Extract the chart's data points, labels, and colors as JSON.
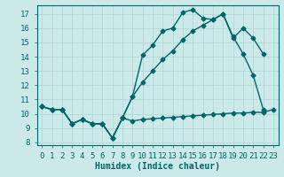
{
  "xlabel": "Humidex (Indice chaleur)",
  "background_color": "#cce9e9",
  "grid_color": "#add4d4",
  "line_color": "#006666",
  "xlim": [
    -0.5,
    23.5
  ],
  "ylim": [
    7.8,
    17.6
  ],
  "yticks": [
    8,
    9,
    10,
    11,
    12,
    13,
    14,
    15,
    16,
    17
  ],
  "xticks": [
    0,
    1,
    2,
    3,
    4,
    5,
    6,
    7,
    8,
    9,
    10,
    11,
    12,
    13,
    14,
    15,
    16,
    17,
    18,
    19,
    20,
    21,
    22,
    23
  ],
  "line1_x": [
    0,
    1,
    2,
    3,
    4,
    5,
    6,
    7,
    8,
    9,
    10,
    11,
    12,
    13,
    14,
    15,
    16,
    17,
    18,
    19,
    20,
    21,
    22,
    23
  ],
  "line1_y": [
    10.5,
    10.3,
    10.3,
    9.3,
    9.6,
    9.3,
    9.3,
    8.3,
    9.7,
    9.5,
    9.6,
    9.65,
    9.7,
    9.75,
    9.8,
    9.85,
    9.9,
    9.95,
    10.0,
    10.05,
    10.05,
    10.1,
    10.1,
    10.3
  ],
  "line2_x": [
    0,
    1,
    2,
    3,
    4,
    5,
    6,
    7,
    8,
    9,
    10,
    11,
    12,
    13,
    14,
    15,
    16,
    17,
    18,
    19,
    20,
    21,
    22
  ],
  "line2_y": [
    10.5,
    10.3,
    10.3,
    9.3,
    9.6,
    9.3,
    9.3,
    8.3,
    9.7,
    11.2,
    14.1,
    14.8,
    15.8,
    16.0,
    17.1,
    17.3,
    16.7,
    16.6,
    17.0,
    15.3,
    16.0,
    15.3,
    14.2
  ],
  "line3_x": [
    0,
    1,
    2,
    3,
    4,
    5,
    6,
    7,
    8,
    9,
    10,
    11,
    12,
    13,
    14,
    15,
    16,
    17,
    18,
    19,
    20,
    21,
    22
  ],
  "line3_y": [
    10.5,
    10.3,
    10.3,
    9.3,
    9.6,
    9.3,
    9.3,
    8.3,
    9.7,
    11.2,
    12.2,
    13.0,
    13.8,
    14.4,
    15.2,
    15.8,
    16.2,
    16.6,
    17.0,
    15.4,
    14.2,
    12.7,
    10.3
  ],
  "marker": "D",
  "markersize": 2.5,
  "linewidth": 1.0,
  "xlabel_fontsize": 7,
  "tick_fontsize": 6.5
}
